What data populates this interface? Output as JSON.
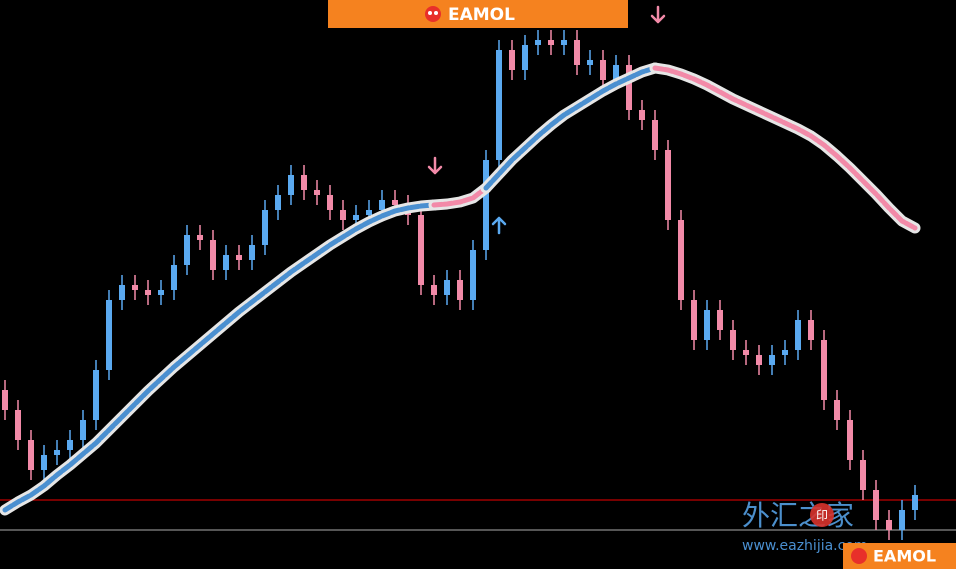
{
  "banner": {
    "logo_text": "EAMOL"
  },
  "footer_logo": {
    "logo_text": "EAMOL"
  },
  "watermark": {
    "title": "外汇之家",
    "icon": "印",
    "url": "www.eazhijia.com"
  },
  "chart_data": {
    "type": "candlestick",
    "ylim": [
      0,
      570
    ],
    "up_color": "#5aa9f0",
    "down_color": "#f28aa8",
    "open": [
      180,
      160,
      130,
      100,
      115,
      120,
      130,
      150,
      200,
      270,
      285,
      280,
      275,
      280,
      305,
      335,
      330,
      300,
      315,
      310,
      325,
      360,
      375,
      395,
      380,
      375,
      360,
      350,
      355,
      360,
      370,
      365,
      355,
      285,
      275,
      290,
      270,
      320,
      410,
      520,
      500,
      525,
      530,
      525,
      530,
      505,
      510,
      490,
      505,
      460,
      450,
      420,
      350,
      270,
      230,
      260,
      240,
      220,
      215,
      205,
      215,
      220,
      250,
      230,
      170,
      150,
      110,
      80,
      50,
      40,
      60
    ],
    "high": [
      190,
      170,
      140,
      125,
      130,
      140,
      160,
      210,
      280,
      295,
      295,
      290,
      290,
      315,
      345,
      345,
      340,
      325,
      325,
      335,
      370,
      385,
      405,
      405,
      390,
      385,
      370,
      365,
      370,
      380,
      380,
      375,
      365,
      295,
      300,
      300,
      330,
      420,
      530,
      530,
      535,
      540,
      540,
      540,
      540,
      520,
      520,
      515,
      515,
      470,
      460,
      430,
      360,
      280,
      270,
      270,
      250,
      230,
      225,
      225,
      230,
      260,
      260,
      240,
      180,
      160,
      120,
      90,
      60,
      70,
      85
    ],
    "low": [
      150,
      120,
      90,
      90,
      105,
      110,
      120,
      140,
      190,
      260,
      270,
      265,
      265,
      270,
      295,
      320,
      290,
      290,
      300,
      300,
      315,
      350,
      365,
      370,
      365,
      350,
      340,
      340,
      345,
      350,
      355,
      345,
      275,
      265,
      265,
      260,
      260,
      310,
      400,
      490,
      490,
      515,
      515,
      515,
      495,
      495,
      480,
      480,
      450,
      440,
      410,
      340,
      260,
      220,
      220,
      230,
      210,
      205,
      195,
      195,
      205,
      210,
      220,
      160,
      140,
      100,
      70,
      40,
      30,
      30,
      50
    ],
    "close": [
      160,
      130,
      100,
      115,
      120,
      130,
      150,
      200,
      270,
      285,
      280,
      275,
      280,
      305,
      335,
      330,
      300,
      315,
      310,
      325,
      360,
      375,
      395,
      380,
      375,
      360,
      350,
      355,
      360,
      370,
      365,
      355,
      285,
      275,
      290,
      270,
      320,
      410,
      520,
      500,
      525,
      530,
      525,
      530,
      505,
      510,
      490,
      505,
      460,
      450,
      420,
      350,
      270,
      230,
      260,
      240,
      220,
      215,
      205,
      215,
      220,
      250,
      230,
      170,
      150,
      110,
      80,
      50,
      40,
      60,
      75
    ],
    "ma_series": [
      {
        "color": "#4a8fd0",
        "values": [
          60,
          68,
          75,
          84,
          95,
          105,
          116,
          127,
          140,
          153,
          166,
          179,
          191,
          203,
          214,
          225,
          236,
          247,
          258,
          268,
          278,
          288,
          298,
          307,
          316,
          325,
          333,
          341,
          348,
          354,
          359,
          362,
          364,
          365,
          null,
          null,
          null,
          null,
          null,
          null,
          null,
          null,
          null,
          null,
          null,
          null,
          null,
          null,
          null,
          null,
          null,
          null,
          null,
          null,
          null,
          null,
          null,
          null,
          null,
          null,
          null,
          null,
          null,
          null,
          null,
          null,
          null,
          null,
          null,
          null,
          null
        ]
      },
      {
        "color": "#f28aa8",
        "values": [
          null,
          null,
          null,
          null,
          null,
          null,
          null,
          null,
          null,
          null,
          null,
          null,
          null,
          null,
          null,
          null,
          null,
          null,
          null,
          null,
          null,
          null,
          null,
          null,
          null,
          null,
          null,
          null,
          null,
          null,
          null,
          null,
          null,
          365,
          366,
          368,
          372,
          382,
          null,
          null,
          null,
          null,
          null,
          null,
          null,
          null,
          null,
          null,
          null,
          null,
          null,
          null,
          null,
          null,
          null,
          null,
          null,
          null,
          null,
          null,
          null,
          null,
          null,
          null,
          null,
          null,
          null,
          null,
          null,
          null,
          null
        ]
      },
      {
        "color": "#4a8fd0",
        "values": [
          null,
          null,
          null,
          null,
          null,
          null,
          null,
          null,
          null,
          null,
          null,
          null,
          null,
          null,
          null,
          null,
          null,
          null,
          null,
          null,
          null,
          null,
          null,
          null,
          null,
          null,
          null,
          null,
          null,
          null,
          null,
          null,
          null,
          null,
          null,
          null,
          null,
          382,
          396,
          410,
          422,
          434,
          445,
          455,
          463,
          471,
          479,
          486,
          492,
          498,
          502,
          null,
          null,
          null,
          null,
          null,
          null,
          null,
          null,
          null,
          null,
          null,
          null,
          null,
          null,
          null,
          null,
          null,
          null,
          null,
          null
        ]
      },
      {
        "color": "#f28aa8",
        "values": [
          null,
          null,
          null,
          null,
          null,
          null,
          null,
          null,
          null,
          null,
          null,
          null,
          null,
          null,
          null,
          null,
          null,
          null,
          null,
          null,
          null,
          null,
          null,
          null,
          null,
          null,
          null,
          null,
          null,
          null,
          null,
          null,
          null,
          null,
          null,
          null,
          null,
          null,
          null,
          null,
          null,
          null,
          null,
          null,
          null,
          null,
          null,
          null,
          null,
          null,
          502,
          500,
          496,
          491,
          485,
          478,
          471,
          465,
          459,
          453,
          447,
          441,
          434,
          425,
          414,
          402,
          389,
          376,
          362,
          349,
          342
        ]
      }
    ],
    "hlines": [
      {
        "value": 70,
        "color": "#c00000"
      },
      {
        "value": 40,
        "color": "#8a8a8a"
      }
    ]
  }
}
